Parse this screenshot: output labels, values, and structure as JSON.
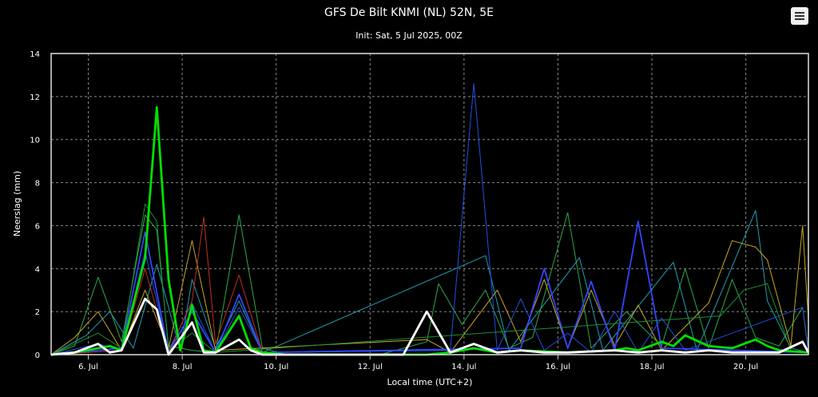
{
  "header": {
    "title": "GFS De Bilt KNMI (NL) 52N, 5E",
    "subtitle": "Init: Sat, 5 Jul 2025, 00Z"
  },
  "menu": {
    "icon": "hamburger-menu-icon"
  },
  "chart_data": {
    "type": "line",
    "title": "GFS De Bilt KNMI (NL) 52N, 5E",
    "subtitle": "Init: Sat, 5 Jul 2025, 00Z",
    "xlabel": "Local time (UTC+2)",
    "ylabel": "Neerslag (mm)",
    "xlim": [
      "2025-07-05T05:00",
      "2025-07-21T08:00"
    ],
    "ylim": [
      0,
      14
    ],
    "grid": true,
    "background": "#000000",
    "x_ticks": [
      {
        "label": "6. Jul",
        "x": "2025-07-06T00:00"
      },
      {
        "label": "8. Jul",
        "x": "2025-07-08T00:00"
      },
      {
        "label": "10. Jul",
        "x": "2025-07-10T00:00"
      },
      {
        "label": "12. Jul",
        "x": "2025-07-12T00:00"
      },
      {
        "label": "14. Jul",
        "x": "2025-07-14T00:00"
      },
      {
        "label": "16. Jul",
        "x": "2025-07-16T00:00"
      },
      {
        "label": "18. Jul",
        "x": "2025-07-18T00:00"
      },
      {
        "label": "20. Jul",
        "x": "2025-07-20T00:00"
      }
    ],
    "y_ticks": [
      "0",
      "2",
      "4",
      "6",
      "8",
      "10",
      "12",
      "14"
    ],
    "series": [
      {
        "color": "#2ea84a",
        "width": 1,
        "points": [
          [
            "2025-07-05T05:00",
            0
          ],
          [
            "2025-07-05T17:00",
            0.4
          ],
          [
            "2025-07-06T05:00",
            3.6
          ],
          [
            "2025-07-06T17:00",
            0.6
          ],
          [
            "2025-07-07T05:00",
            6.5
          ],
          [
            "2025-07-07T11:00",
            5.8
          ],
          [
            "2025-07-07T17:00",
            0.4
          ],
          [
            "2025-07-08T05:00",
            0.2
          ],
          [
            "2025-07-08T17:00",
            0.1
          ],
          [
            "2025-07-09T05:00",
            6.5
          ],
          [
            "2025-07-09T17:00",
            0.3
          ],
          [
            "2025-07-10T05:00",
            0
          ],
          [
            "2025-07-12T05:00",
            0
          ],
          [
            "2025-07-13T05:00",
            0.6
          ],
          [
            "2025-07-13T11:00",
            3.3
          ],
          [
            "2025-07-13T23:00",
            1.4
          ],
          [
            "2025-07-14T11:00",
            3.0
          ],
          [
            "2025-07-14T23:00",
            0.3
          ],
          [
            "2025-07-15T11:00",
            0.8
          ],
          [
            "2025-07-16T05:00",
            6.6
          ],
          [
            "2025-07-16T17:00",
            0.3
          ],
          [
            "2025-07-17T11:00",
            2.0
          ],
          [
            "2025-07-18T05:00",
            0.4
          ],
          [
            "2025-07-18T17:00",
            4.0
          ],
          [
            "2025-07-19T05:00",
            0.3
          ],
          [
            "2025-07-19T17:00",
            3.5
          ],
          [
            "2025-07-20T05:00",
            0.8
          ],
          [
            "2025-07-20T17:00",
            0.4
          ],
          [
            "2025-07-21T05:00",
            2.2
          ],
          [
            "2025-07-21T08:00",
            0.2
          ]
        ]
      },
      {
        "color": "#1fa0b0",
        "width": 1,
        "points": [
          [
            "2025-07-05T05:00",
            0
          ],
          [
            "2025-07-05T23:00",
            0.9
          ],
          [
            "2025-07-06T11:00",
            2.0
          ],
          [
            "2025-07-06T23:00",
            0.3
          ],
          [
            "2025-07-07T11:00",
            4.2
          ],
          [
            "2025-07-07T23:00",
            0.2
          ],
          [
            "2025-07-08T05:00",
            3.5
          ],
          [
            "2025-07-08T17:00",
            0.3
          ],
          [
            "2025-07-09T05:00",
            2.5
          ],
          [
            "2025-07-09T17:00",
            0.1
          ],
          [
            "2025-07-14T11:00",
            4.6
          ],
          [
            "2025-07-14T23:00",
            0.2
          ],
          [
            "2025-07-16T11:00",
            4.5
          ],
          [
            "2025-07-16T23:00",
            0.2
          ],
          [
            "2025-07-18T11:00",
            4.3
          ],
          [
            "2025-07-18T23:00",
            0.2
          ],
          [
            "2025-07-20T05:00",
            6.7
          ],
          [
            "2025-07-20T11:00",
            2.5
          ],
          [
            "2025-07-20T23:00",
            0.3
          ],
          [
            "2025-07-21T08:00",
            0.1
          ]
        ]
      },
      {
        "color": "#c8a820",
        "width": 1,
        "points": [
          [
            "2025-07-05T05:00",
            0
          ],
          [
            "2025-07-05T17:00",
            0.8
          ],
          [
            "2025-07-06T05:00",
            2.0
          ],
          [
            "2025-07-06T17:00",
            0.2
          ],
          [
            "2025-07-07T05:00",
            3.0
          ],
          [
            "2025-07-07T17:00",
            0.3
          ],
          [
            "2025-07-08T05:00",
            5.3
          ],
          [
            "2025-07-08T17:00",
            0.2
          ],
          [
            "2025-07-13T05:00",
            0.7
          ],
          [
            "2025-07-13T17:00",
            0.1
          ],
          [
            "2025-07-14T17:00",
            3.0
          ],
          [
            "2025-07-15T05:00",
            0.6
          ],
          [
            "2025-07-15T17:00",
            3.5
          ],
          [
            "2025-07-16T05:00",
            0.3
          ],
          [
            "2025-07-16T17:00",
            3.0
          ],
          [
            "2025-07-17T05:00",
            0.4
          ],
          [
            "2025-07-17T17:00",
            2.3
          ],
          [
            "2025-07-18T05:00",
            0.2
          ],
          [
            "2025-07-19T05:00",
            2.4
          ],
          [
            "2025-07-19T17:00",
            5.3
          ],
          [
            "2025-07-20T05:00",
            5.0
          ],
          [
            "2025-07-20T11:00",
            4.4
          ],
          [
            "2025-07-20T23:00",
            0.4
          ],
          [
            "2025-07-21T05:00",
            6.0
          ],
          [
            "2025-07-21T08:00",
            1.6
          ]
        ]
      },
      {
        "color": "#2050e0",
        "width": 1,
        "points": [
          [
            "2025-07-05T05:00",
            0
          ],
          [
            "2025-07-06T05:00",
            0.5
          ],
          [
            "2025-07-06T17:00",
            0.2
          ],
          [
            "2025-07-07T05:00",
            4.8
          ],
          [
            "2025-07-07T17:00",
            0.2
          ],
          [
            "2025-07-08T05:00",
            2.4
          ],
          [
            "2025-07-08T17:00",
            0.1
          ],
          [
            "2025-07-09T05:00",
            2.2
          ],
          [
            "2025-07-09T17:00",
            0.1
          ],
          [
            "2025-07-13T17:00",
            0.2
          ],
          [
            "2025-07-14T05:00",
            12.6
          ],
          [
            "2025-07-14T17:00",
            0.2
          ],
          [
            "2025-07-15T05:00",
            2.6
          ],
          [
            "2025-07-15T17:00",
            0.2
          ],
          [
            "2025-07-16T05:00",
            1.0
          ],
          [
            "2025-07-16T17:00",
            0.1
          ],
          [
            "2025-07-17T05:00",
            2.0
          ],
          [
            "2025-07-17T17:00",
            0.1
          ],
          [
            "2025-07-18T05:00",
            1.7
          ],
          [
            "2025-07-18T17:00",
            0.2
          ],
          [
            "2025-07-21T05:00",
            2.2
          ],
          [
            "2025-07-21T08:00",
            0.1
          ]
        ]
      },
      {
        "color": "#3344ff",
        "width": 1.8,
        "points": [
          [
            "2025-07-05T05:00",
            0
          ],
          [
            "2025-07-06T17:00",
            0.3
          ],
          [
            "2025-07-07T05:00",
            5.7
          ],
          [
            "2025-07-07T17:00",
            0.1
          ],
          [
            "2025-07-08T05:00",
            2.0
          ],
          [
            "2025-07-08T17:00",
            0.1
          ],
          [
            "2025-07-09T05:00",
            2.8
          ],
          [
            "2025-07-09T17:00",
            0.1
          ],
          [
            "2025-07-15T05:00",
            0.3
          ],
          [
            "2025-07-15T17:00",
            4.0
          ],
          [
            "2025-07-16T05:00",
            0.3
          ],
          [
            "2025-07-16T17:00",
            3.4
          ],
          [
            "2025-07-17T05:00",
            0.2
          ],
          [
            "2025-07-17T17:00",
            6.2
          ],
          [
            "2025-07-18T05:00",
            0.3
          ],
          [
            "2025-07-21T08:00",
            0.1
          ]
        ]
      },
      {
        "color": "#c03020",
        "width": 1,
        "points": [
          [
            "2025-07-05T05:00",
            0
          ],
          [
            "2025-07-06T17:00",
            0.2
          ],
          [
            "2025-07-07T05:00",
            4.0
          ],
          [
            "2025-07-07T17:00",
            0.1
          ],
          [
            "2025-07-08T05:00",
            2.5
          ],
          [
            "2025-07-08T11:00",
            6.4
          ],
          [
            "2025-07-08T17:00",
            0.5
          ],
          [
            "2025-07-09T05:00",
            3.7
          ],
          [
            "2025-07-09T17:00",
            0.1
          ],
          [
            "2025-07-10T05:00",
            0
          ]
        ]
      },
      {
        "color": "#1a8f3a",
        "width": 1,
        "points": [
          [
            "2025-07-05T05:00",
            0
          ],
          [
            "2025-07-06T05:00",
            1.0
          ],
          [
            "2025-07-06T17:00",
            0.3
          ],
          [
            "2025-07-07T05:00",
            7.0
          ],
          [
            "2025-07-07T11:00",
            6.2
          ],
          [
            "2025-07-07T17:00",
            0.2
          ],
          [
            "2025-07-08T05:00",
            1.0
          ],
          [
            "2025-07-08T17:00",
            0.1
          ],
          [
            "2025-07-19T11:00",
            1.8
          ],
          [
            "2025-07-19T23:00",
            3.0
          ],
          [
            "2025-07-20T11:00",
            3.3
          ],
          [
            "2025-07-20T23:00",
            0.2
          ]
        ]
      },
      {
        "color": "#00e000",
        "width": 2.8,
        "points": [
          [
            "2025-07-05T05:00",
            0
          ],
          [
            "2025-07-05T17:00",
            0.1
          ],
          [
            "2025-07-06T05:00",
            0.3
          ],
          [
            "2025-07-06T11:00",
            0.4
          ],
          [
            "2025-07-06T17:00",
            0.2
          ],
          [
            "2025-07-07T05:00",
            4.5
          ],
          [
            "2025-07-07T11:00",
            11.5
          ],
          [
            "2025-07-07T17:00",
            3.5
          ],
          [
            "2025-07-07T23:00",
            0.2
          ],
          [
            "2025-07-08T05:00",
            2.3
          ],
          [
            "2025-07-08T11:00",
            0.2
          ],
          [
            "2025-07-08T17:00",
            0.1
          ],
          [
            "2025-07-09T05:00",
            1.8
          ],
          [
            "2025-07-09T11:00",
            0.3
          ],
          [
            "2025-07-09T17:00",
            0.1
          ],
          [
            "2025-07-10T05:00",
            0
          ],
          [
            "2025-07-13T05:00",
            0
          ],
          [
            "2025-07-13T17:00",
            0.1
          ],
          [
            "2025-07-14T05:00",
            0.3
          ],
          [
            "2025-07-14T17:00",
            0.1
          ],
          [
            "2025-07-15T05:00",
            0.2
          ],
          [
            "2025-07-16T05:00",
            0.1
          ],
          [
            "2025-07-17T05:00",
            0.2
          ],
          [
            "2025-07-17T11:00",
            0.3
          ],
          [
            "2025-07-17T17:00",
            0.2
          ],
          [
            "2025-07-18T05:00",
            0.6
          ],
          [
            "2025-07-18T11:00",
            0.4
          ],
          [
            "2025-07-18T17:00",
            0.9
          ],
          [
            "2025-07-19T05:00",
            0.4
          ],
          [
            "2025-07-19T17:00",
            0.3
          ],
          [
            "2025-07-20T05:00",
            0.7
          ],
          [
            "2025-07-20T11:00",
            0.4
          ],
          [
            "2025-07-20T17:00",
            0.2
          ],
          [
            "2025-07-21T08:00",
            0.1
          ]
        ]
      },
      {
        "color": "#ffffff",
        "width": 2.8,
        "points": [
          [
            "2025-07-05T05:00",
            0
          ],
          [
            "2025-07-05T17:00",
            0.1
          ],
          [
            "2025-07-06T05:00",
            0.5
          ],
          [
            "2025-07-06T11:00",
            0.1
          ],
          [
            "2025-07-06T17:00",
            0.2
          ],
          [
            "2025-07-07T05:00",
            2.6
          ],
          [
            "2025-07-07T11:00",
            2.1
          ],
          [
            "2025-07-07T17:00",
            0
          ],
          [
            "2025-07-08T05:00",
            1.5
          ],
          [
            "2025-07-08T11:00",
            0.1
          ],
          [
            "2025-07-08T17:00",
            0.1
          ],
          [
            "2025-07-09T05:00",
            0.7
          ],
          [
            "2025-07-09T11:00",
            0.2
          ],
          [
            "2025-07-09T17:00",
            0
          ],
          [
            "2025-07-12T17:00",
            0
          ],
          [
            "2025-07-13T05:00",
            2.0
          ],
          [
            "2025-07-13T17:00",
            0.1
          ],
          [
            "2025-07-14T05:00",
            0.5
          ],
          [
            "2025-07-14T17:00",
            0.1
          ],
          [
            "2025-07-15T05:00",
            0.2
          ],
          [
            "2025-07-15T17:00",
            0.1
          ],
          [
            "2025-07-16T05:00",
            0.1
          ],
          [
            "2025-07-17T05:00",
            0.2
          ],
          [
            "2025-07-17T17:00",
            0.1
          ],
          [
            "2025-07-18T05:00",
            0.2
          ],
          [
            "2025-07-18T17:00",
            0.1
          ],
          [
            "2025-07-19T05:00",
            0.2
          ],
          [
            "2025-07-19T17:00",
            0.1
          ],
          [
            "2025-07-20T05:00",
            0.1
          ],
          [
            "2025-07-20T17:00",
            0.1
          ],
          [
            "2025-07-21T05:00",
            0.6
          ],
          [
            "2025-07-21T08:00",
            0.1
          ]
        ]
      }
    ]
  }
}
